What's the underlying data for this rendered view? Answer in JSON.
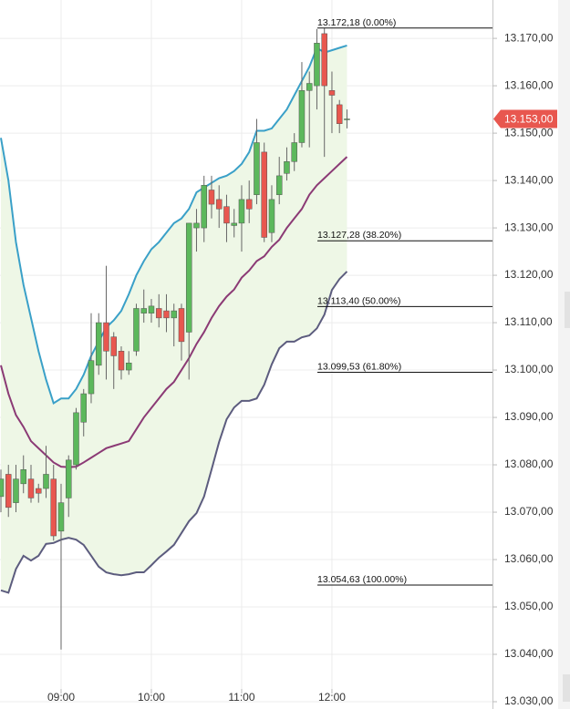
{
  "chart_data": {
    "type": "candlestick",
    "x": [
      500,
      505,
      510,
      515,
      520,
      525,
      530,
      535,
      540,
      545,
      550,
      555,
      560,
      565,
      570,
      575,
      580,
      585,
      590,
      595,
      600,
      605,
      610,
      615,
      620,
      625,
      630,
      635,
      640,
      645,
      650,
      655,
      660,
      665,
      670,
      675,
      680,
      685,
      690,
      695,
      700,
      705,
      710,
      715,
      720,
      725,
      730
    ],
    "open": [
      13073.3,
      13078,
      13072,
      13076,
      13077,
      13075,
      13075,
      13077,
      13066,
      13073,
      13080,
      13089,
      13095,
      13101,
      13110,
      13107,
      13104,
      13100,
      13104,
      13112,
      13112,
      13113,
      13112.5,
      13111,
      13113,
      13108,
      13130,
      13130,
      13138,
      13136,
      13134.5,
      13130.5,
      13131,
      13136,
      13137,
      13146,
      13129,
      13137,
      13141.5,
      13144,
      13148,
      13159,
      13160,
      13171,
      13159,
      13156,
      13153
    ],
    "high": [
      13079,
      13080,
      13080,
      13082,
      13080,
      13076,
      13084,
      13080,
      13076,
      13082,
      13092,
      13096,
      13112,
      13112,
      13122,
      13108,
      13105,
      13104,
      13114,
      13117,
      13115,
      13116,
      13116,
      13114,
      13114,
      13131,
      13134,
      13141,
      13141,
      13139,
      13137,
      13134,
      13139,
      13140,
      13153,
      13148,
      13139,
      13145,
      13147,
      13150,
      13165,
      13163,
      13172,
      13172.18,
      13163,
      13157,
      13155
    ],
    "low": [
      13070,
      13069,
      13070,
      13074,
      13072,
      13072,
      13073,
      13064,
      13041,
      13069,
      13079,
      13086,
      13093,
      13099,
      13098,
      13096,
      13098,
      13099,
      13103,
      13110,
      13110,
      13109,
      13108,
      13105,
      13102,
      13098,
      13125,
      13127,
      13132,
      13130,
      13127,
      13128,
      13125,
      13131,
      13135,
      13127,
      13127,
      13135,
      13140,
      13142,
      13147,
      13147,
      13155,
      13145,
      13150,
      13150,
      13151
    ],
    "close": [
      13077,
      13071,
      13077,
      13079,
      13073,
      13074,
      13078,
      13065,
      13072,
      13081,
      13091,
      13095,
      13102,
      13110,
      13104,
      13103,
      13100,
      13101.5,
      13113,
      13113,
      13113.5,
      13111,
      13111,
      13112.5,
      13106,
      13131,
      13131,
      13139,
      13135,
      13134,
      13131,
      13131,
      13136,
      13134,
      13148,
      13128,
      13136,
      13141,
      13144,
      13148,
      13159,
      13160.5,
      13169,
      13160,
      13158,
      13152,
      13153
    ],
    "up_color": "#5cb85c",
    "down_color": "#e8574f",
    "lines": [
      {
        "color": "#3aa0c8",
        "values": [
          13149,
          13140,
          13127,
          13118,
          13111,
          13104,
          13098,
          13093,
          13094,
          13094,
          13096,
          13099,
          13103,
          13106,
          13109,
          13110.5,
          13112.5,
          13116,
          13120,
          13123,
          13125.5,
          13127,
          13129,
          13131,
          13132,
          13134,
          13137.5,
          13138.5,
          13139.5,
          13140.5,
          13141,
          13142,
          13143.5,
          13146,
          13150.5,
          13150.5,
          13151,
          13153,
          13155,
          13158,
          13161,
          13164,
          13168,
          13167,
          13167.5,
          13168,
          13168.5
        ]
      },
      {
        "color": "#8b3a75",
        "values": [
          13101,
          13095,
          13090.5,
          13088,
          13085,
          13083.5,
          13082,
          13080.5,
          13079.6,
          13079.5,
          13079.6,
          13080.5,
          13081.5,
          13082.5,
          13083.5,
          13084,
          13084.5,
          13085,
          13087.5,
          13090,
          13092,
          13094,
          13096,
          13097.5,
          13100,
          13102.5,
          13105.5,
          13108,
          13111,
          13113.5,
          13115.5,
          13117,
          13119.5,
          13121,
          13123,
          13124,
          13126,
          13127.5,
          13130,
          13132,
          13134,
          13137,
          13139,
          13140.5,
          13142,
          13143.5,
          13145
        ]
      },
      {
        "color": "#5c5c7e",
        "values": [
          13053.5,
          13053,
          13058,
          13060.8,
          13059.8,
          13060.8,
          13063.3,
          13063.5,
          13064.2,
          13064.6,
          13064.2,
          13063.1,
          13060.8,
          13058.5,
          13057.3,
          13056.9,
          13056.7,
          13056.9,
          13057.3,
          13057.3,
          13058.8,
          13060.4,
          13061.7,
          13063.1,
          13065.6,
          13068.1,
          13069.8,
          13073.3,
          13079,
          13084.8,
          13089.6,
          13092.1,
          13093.5,
          13093.5,
          13094,
          13096.9,
          13101.2,
          13104.6,
          13106,
          13106,
          13106.9,
          13107.3,
          13108.8,
          13111.7,
          13116.9,
          13119.2,
          13120.8
        ]
      }
    ],
    "band_fill": "#eef7e6",
    "fib_levels": [
      {
        "value": 13172.18,
        "label": "13.172,18 (0.00%)"
      },
      {
        "value": 13127.28,
        "label": "13.127,28 (38.20%)"
      },
      {
        "value": 13113.4,
        "label": "13.113,40 (50.00%)"
      },
      {
        "value": 13099.53,
        "label": "13.099,53 (61.80%)"
      },
      {
        "value": 13054.63,
        "label": "13.054,63 (100.00%)"
      }
    ],
    "last_price": {
      "value": 13153,
      "label": "13.153,00"
    },
    "last_price_color": "#e8574f",
    "xlim": [
      499.4,
      826.7
    ],
    "ylim": [
      13030,
      13178.1
    ],
    "xticks": [
      {
        "value": 540,
        "label": "09:00"
      },
      {
        "value": 600,
        "label": "10:00"
      },
      {
        "value": 660,
        "label": "11:00"
      },
      {
        "value": 720,
        "label": "12:00"
      }
    ],
    "yticks": [
      {
        "value": 13030,
        "label": "13.030,00"
      },
      {
        "value": 13040,
        "label": "13.040,00"
      },
      {
        "value": 13050,
        "label": "13.050,00"
      },
      {
        "value": 13060,
        "label": "13.060,00"
      },
      {
        "value": 13070,
        "label": "13.070,00"
      },
      {
        "value": 13080,
        "label": "13.080,00"
      },
      {
        "value": 13090,
        "label": "13.090,00"
      },
      {
        "value": 13100,
        "label": "13.100,00"
      },
      {
        "value": 13110,
        "label": "13.110,00"
      },
      {
        "value": 13120,
        "label": "13.120,00"
      },
      {
        "value": 13130,
        "label": "13.130,00"
      },
      {
        "value": 13140,
        "label": "13.140,00"
      },
      {
        "value": 13150,
        "label": "13.150,00"
      },
      {
        "value": 13160,
        "label": "13.160,00"
      },
      {
        "value": 13170,
        "label": "13.170,00"
      }
    ],
    "grid": true
  }
}
